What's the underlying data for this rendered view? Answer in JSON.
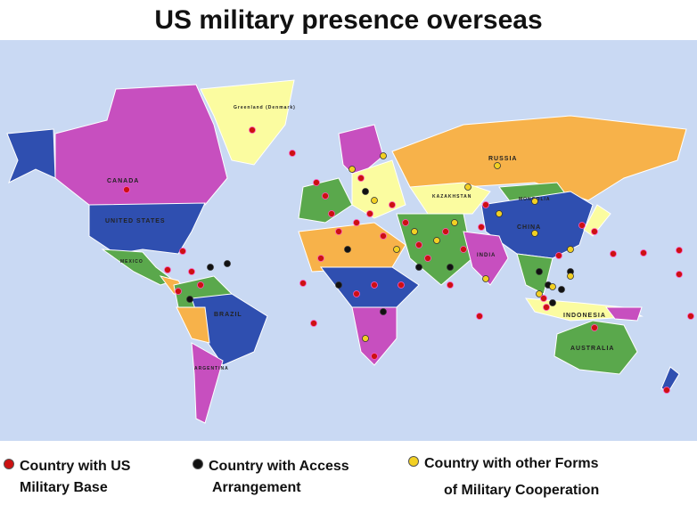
{
  "title": "US military presence overseas",
  "map": {
    "country_labels": {
      "canada": "CANADA",
      "united_states": "UNITED STATES",
      "greenland": "Greenland (Denmark)",
      "mexico": "MEXICO",
      "brazil": "BRAZIL",
      "argentina": "ARGENTINA",
      "russia": "RUSSIA",
      "kazakhstan": "KAZAKHSTAN",
      "mongolia": "MONGOLIA",
      "china": "CHINA",
      "india": "INDIA",
      "indonesia": "INDONESIA",
      "australia": "AUSTRALIA"
    },
    "colors": {
      "ocean": "#c9d9f3",
      "blue": "#2f4fb0",
      "magenta": "#c74fbf",
      "yellow": "#fbfca0",
      "green": "#5aa84c",
      "orange": "#f7b24a"
    }
  },
  "legend": [
    {
      "label_line1": "Country with US",
      "label_line2": "Military Base",
      "color": "#cc1111"
    },
    {
      "label_line1": "Country with Access",
      "label_line2": "Arrangement",
      "color": "#111111"
    },
    {
      "label_line1": "Country with other Forms",
      "label_line2": "of Military Cooperation",
      "color": "#f2d023"
    }
  ]
}
